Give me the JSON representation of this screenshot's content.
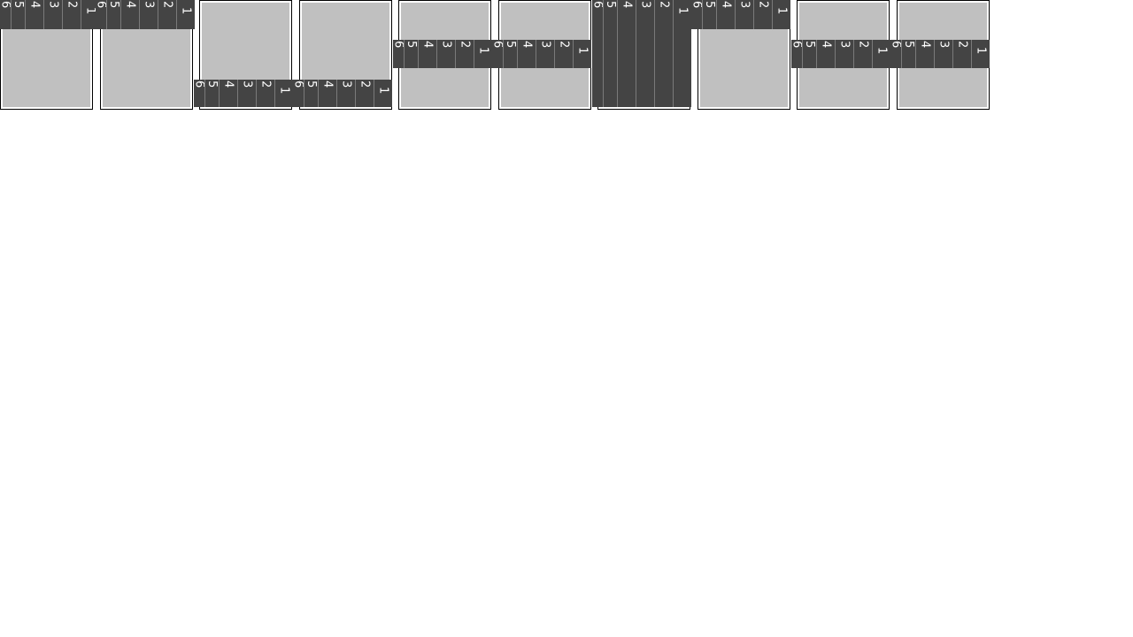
{
  "frames": [
    {
      "segments": [
        "6",
        "5",
        "4",
        "3",
        "2",
        "1"
      ]
    },
    {
      "segments": [
        "6",
        "5",
        "4",
        "3",
        "2",
        "1"
      ]
    },
    {
      "segments": [
        "6",
        "5",
        "4",
        "3",
        "2",
        "1"
      ]
    },
    {
      "segments": [
        "6",
        "5",
        "4",
        "3",
        "2",
        "1"
      ]
    },
    {
      "segments": [
        "6",
        "5",
        "4",
        "3",
        "2",
        "1"
      ]
    },
    {
      "segments": [
        "6",
        "5",
        "4",
        "3",
        "2",
        "1"
      ]
    },
    {
      "segments": [
        "6",
        "5",
        "4",
        "3",
        "2",
        "1"
      ]
    },
    {
      "segments": [
        "6",
        "5",
        "4",
        "3",
        "2",
        "1"
      ]
    },
    {
      "segments": [
        "6",
        "5",
        "4",
        "3",
        "2",
        "1"
      ]
    },
    {
      "segments": [
        "6",
        "5",
        "4",
        "3",
        "2",
        "1"
      ]
    }
  ],
  "colors": {
    "frame_fill": "#c0c0c0",
    "strip_fill": "#444444",
    "label": "#ffffff"
  }
}
